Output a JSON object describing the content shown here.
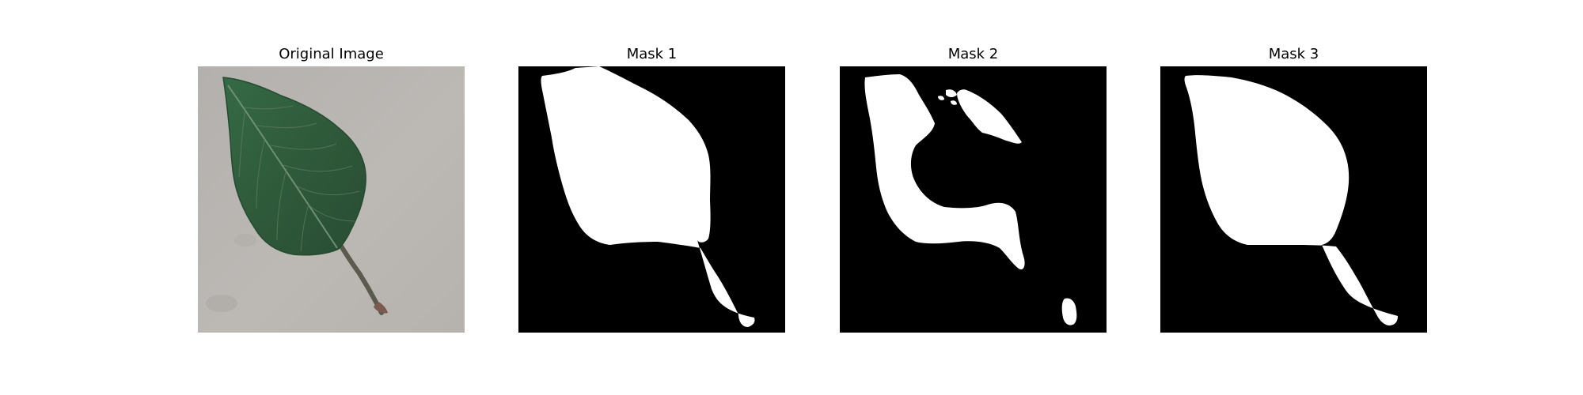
{
  "figure": {
    "panels": [
      {
        "id": "original",
        "title": "Original Image",
        "kind": "photo"
      },
      {
        "id": "mask-1",
        "title": "Mask 1",
        "kind": "mask"
      },
      {
        "id": "mask-2",
        "title": "Mask 2",
        "kind": "mask"
      },
      {
        "id": "mask-3",
        "title": "Mask 3",
        "kind": "mask"
      }
    ],
    "colors": {
      "background": "#ffffff",
      "mask_background": "#000000",
      "mask_foreground": "#ffffff",
      "surface": "#b8b5b1",
      "leaf_dark": "#2e5237",
      "leaf_mid": "#3d6b46",
      "leaf_vein": "#6f8f73",
      "stem": "#5f5a4f"
    }
  }
}
